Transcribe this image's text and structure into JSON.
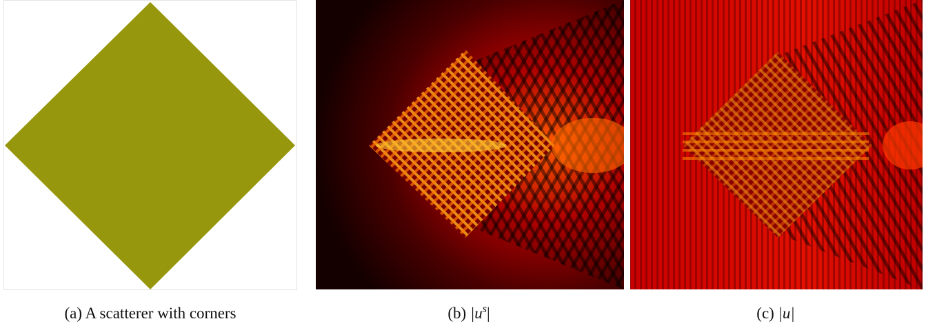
{
  "figure": {
    "panels": [
      {
        "label": "(a)",
        "caption": "A scatterer with corners"
      },
      {
        "label": "(b)",
        "math": [
          "|u",
          "s",
          "|"
        ]
      },
      {
        "label": "(c)",
        "math": [
          "|u|"
        ]
      }
    ]
  }
}
